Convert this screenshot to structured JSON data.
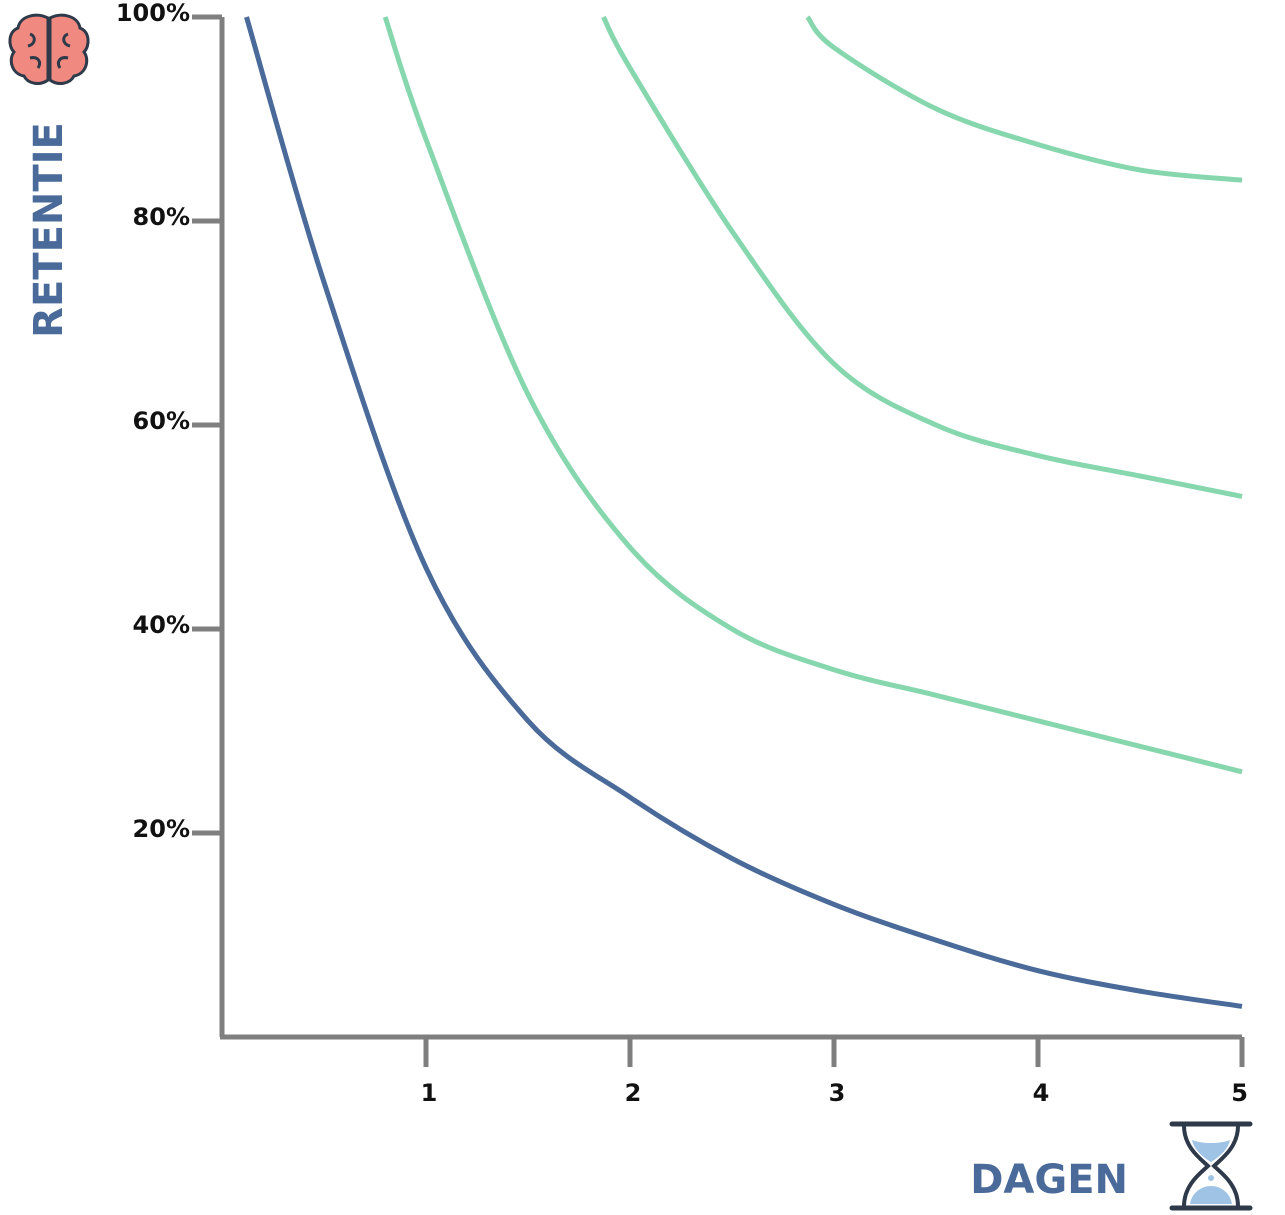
{
  "chart_data": {
    "type": "line",
    "title": "",
    "xlabel": "DAGEN",
    "ylabel": "RETENTIE",
    "xlim": [
      0,
      5
    ],
    "ylim": [
      0,
      100
    ],
    "x_ticks": [
      {
        "value": 1,
        "label": "1"
      },
      {
        "value": 2,
        "label": "2"
      },
      {
        "value": 3,
        "label": "3"
      },
      {
        "value": 4,
        "label": "4"
      },
      {
        "value": 5,
        "label": "5"
      }
    ],
    "y_ticks": [
      {
        "value": 20,
        "label": "20%"
      },
      {
        "value": 40,
        "label": "40%"
      },
      {
        "value": 60,
        "label": "60%"
      },
      {
        "value": 80,
        "label": "80%"
      },
      {
        "value": 100,
        "label": "100%"
      }
    ],
    "grid": false,
    "legend": "none",
    "series": [
      {
        "color": "#4a6a9a",
        "x": [
          0.12,
          0.5,
          1.0,
          1.5,
          2.0,
          2.5,
          3.0,
          3.5,
          4.0,
          4.5,
          5.0
        ],
        "values": [
          100,
          74,
          46,
          31,
          23.5,
          17.5,
          13,
          9.5,
          6.5,
          4.5,
          3
        ]
      },
      {
        "color": "#86d6ae",
        "x": [
          0.8,
          1.0,
          1.5,
          2.0,
          2.5,
          3.0,
          3.5,
          4.0,
          4.5,
          5.0
        ],
        "values": [
          100,
          88,
          63,
          48,
          40,
          36,
          33.5,
          31,
          28.5,
          26
        ]
      },
      {
        "color": "#86d6ae",
        "x": [
          1.87,
          2.0,
          2.5,
          3.0,
          3.5,
          4.0,
          4.5,
          5.0
        ],
        "values": [
          100,
          95,
          79,
          66,
          60,
          57,
          55,
          53
        ]
      },
      {
        "color": "#86d6ae",
        "x": [
          2.87,
          3.0,
          3.5,
          4.0,
          4.5,
          5.0
        ],
        "values": [
          100,
          97,
          91,
          87.5,
          85,
          84
        ]
      }
    ]
  },
  "colors": {
    "axis": "#7f7f7f",
    "axis_title": "#4a6a9a",
    "tick_label": "#111111",
    "brain": "#f08a80",
    "brain_outline": "#2e3a4a",
    "hourglass_frame": "#2e3a4a",
    "hourglass_sand": "#9fc3e4"
  },
  "icons": {
    "top_left": "brain-icon",
    "bottom_right": "hourglass-icon"
  }
}
